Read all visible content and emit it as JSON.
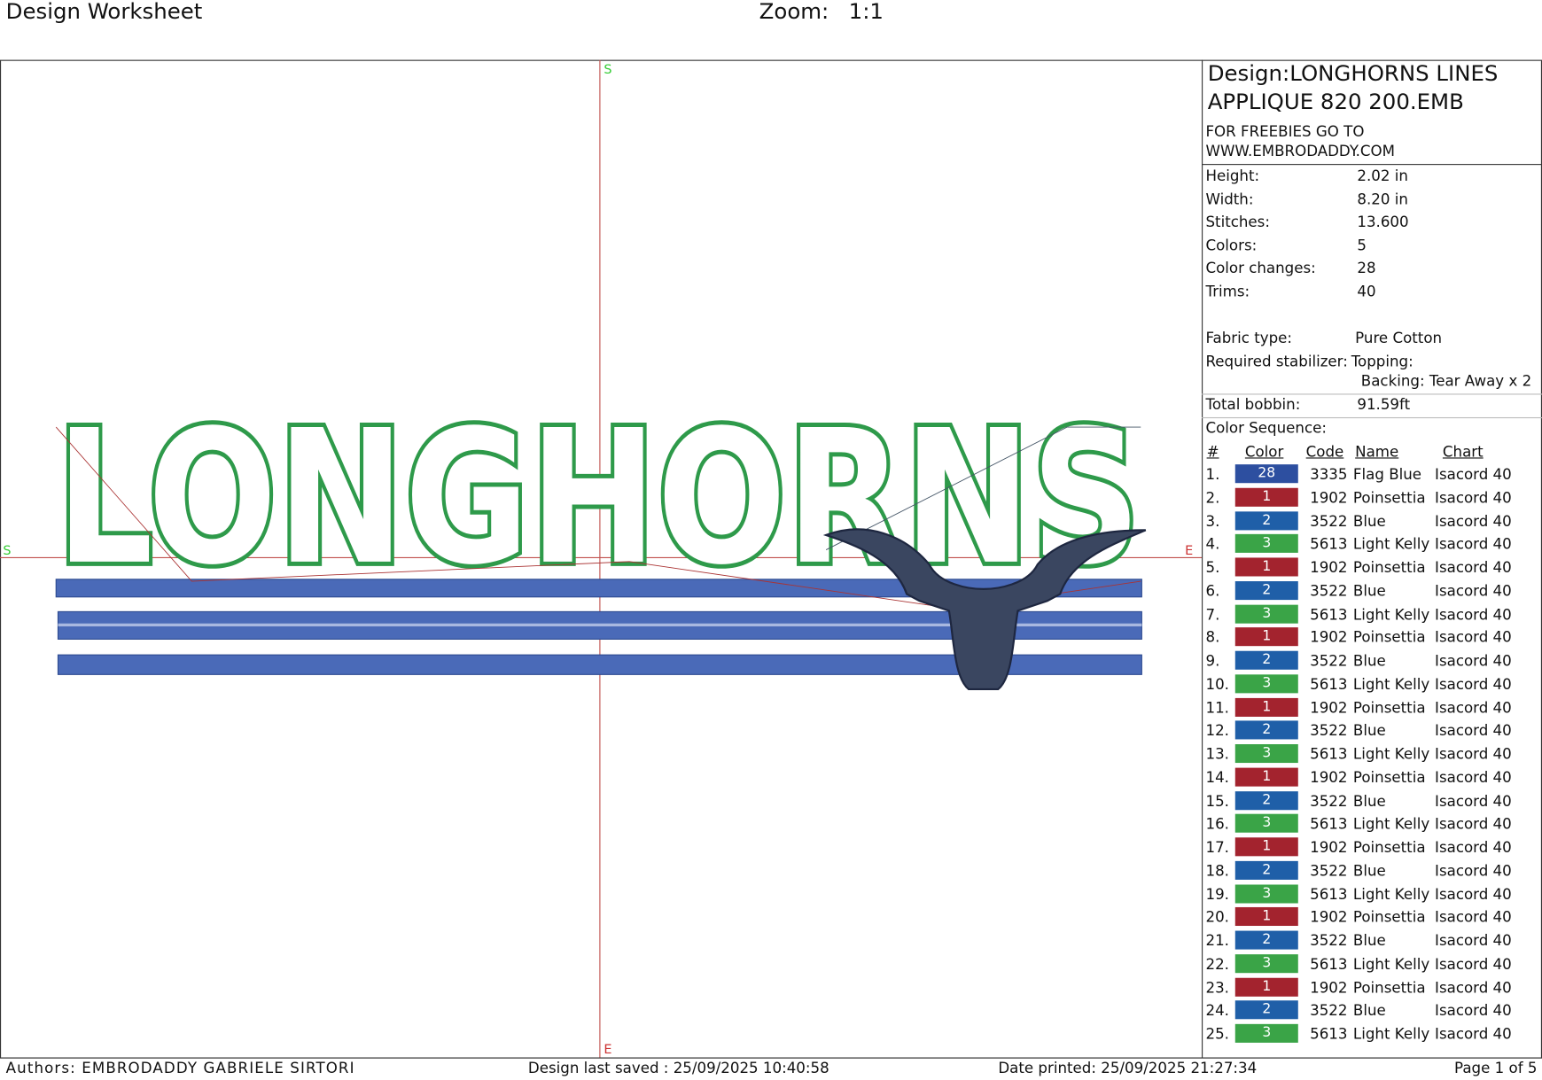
{
  "header": {
    "title": "Design Worksheet",
    "zoom_label": "Zoom:",
    "zoom": "1:1"
  },
  "canvas": {
    "art_text": "LONGHORNS",
    "markers": {
      "top": "S",
      "left": "S",
      "right": "E",
      "bottom": "E"
    }
  },
  "panel": {
    "design": [
      "Design:LONGHORNS LINES",
      "APPLIQUE 820 200.EMB"
    ],
    "note": [
      "FOR FREEBIES GO TO",
      "WWW.EMBRODADDY.COM"
    ],
    "info": [
      [
        "Height:",
        "2.02 in"
      ],
      [
        "Width:",
        "8.20 in"
      ],
      [
        "Stitches:",
        "13.600"
      ],
      [
        "Colors:",
        "5"
      ],
      [
        "Color changes:",
        "28"
      ],
      [
        "Trims:",
        "40"
      ]
    ],
    "fabric": [
      "Fabric type:",
      "Pure Cotton"
    ],
    "stabilizer": {
      "label": "Required stabilizer:",
      "topping": "Topping:",
      "backing": "Backing: Tear Away x 2"
    },
    "bobbin": [
      "Total bobbin:",
      "91.59ft"
    ],
    "sequence_title": "Color Sequence:",
    "columns": [
      "#",
      "Color",
      "Code",
      "Name",
      "Chart"
    ],
    "swatch_colors": {
      "28": "#2d4fa0",
      "1": "#a3232e",
      "2": "#1f5fa8",
      "3": "#3aa447"
    },
    "rows": [
      [
        "1.",
        "28",
        "3335",
        "Flag Blue",
        "Isacord 40"
      ],
      [
        "2.",
        "1",
        "1902",
        "Poinsettia",
        "Isacord 40"
      ],
      [
        "3.",
        "2",
        "3522",
        "Blue",
        "Isacord 40"
      ],
      [
        "4.",
        "3",
        "5613",
        "Light Kelly",
        "Isacord 40"
      ],
      [
        "5.",
        "1",
        "1902",
        "Poinsettia",
        "Isacord 40"
      ],
      [
        "6.",
        "2",
        "3522",
        "Blue",
        "Isacord 40"
      ],
      [
        "7.",
        "3",
        "5613",
        "Light Kelly",
        "Isacord 40"
      ],
      [
        "8.",
        "1",
        "1902",
        "Poinsettia",
        "Isacord 40"
      ],
      [
        "9.",
        "2",
        "3522",
        "Blue",
        "Isacord 40"
      ],
      [
        "10.",
        "3",
        "5613",
        "Light Kelly",
        "Isacord 40"
      ],
      [
        "11.",
        "1",
        "1902",
        "Poinsettia",
        "Isacord 40"
      ],
      [
        "12.",
        "2",
        "3522",
        "Blue",
        "Isacord 40"
      ],
      [
        "13.",
        "3",
        "5613",
        "Light Kelly",
        "Isacord 40"
      ],
      [
        "14.",
        "1",
        "1902",
        "Poinsettia",
        "Isacord 40"
      ],
      [
        "15.",
        "2",
        "3522",
        "Blue",
        "Isacord 40"
      ],
      [
        "16.",
        "3",
        "5613",
        "Light Kelly",
        "Isacord 40"
      ],
      [
        "17.",
        "1",
        "1902",
        "Poinsettia",
        "Isacord 40"
      ],
      [
        "18.",
        "2",
        "3522",
        "Blue",
        "Isacord 40"
      ],
      [
        "19.",
        "3",
        "5613",
        "Light Kelly",
        "Isacord 40"
      ],
      [
        "20.",
        "1",
        "1902",
        "Poinsettia",
        "Isacord 40"
      ],
      [
        "21.",
        "2",
        "3522",
        "Blue",
        "Isacord 40"
      ],
      [
        "22.",
        "3",
        "5613",
        "Light Kelly",
        "Isacord 40"
      ],
      [
        "23.",
        "1",
        "1902",
        "Poinsettia",
        "Isacord 40"
      ],
      [
        "24.",
        "2",
        "3522",
        "Blue",
        "Isacord 40"
      ],
      [
        "25.",
        "3",
        "5613",
        "Light Kelly",
        "Isacord 40"
      ]
    ]
  },
  "footer": {
    "authors": "Authors: EMBRODADDY GABRIELE SIRTORI",
    "saved": "Design last saved : 25/09/2025 10:40:58",
    "printed": "Date printed: 25/09/2025 21:27:34",
    "page": "Page 1 of 5"
  }
}
